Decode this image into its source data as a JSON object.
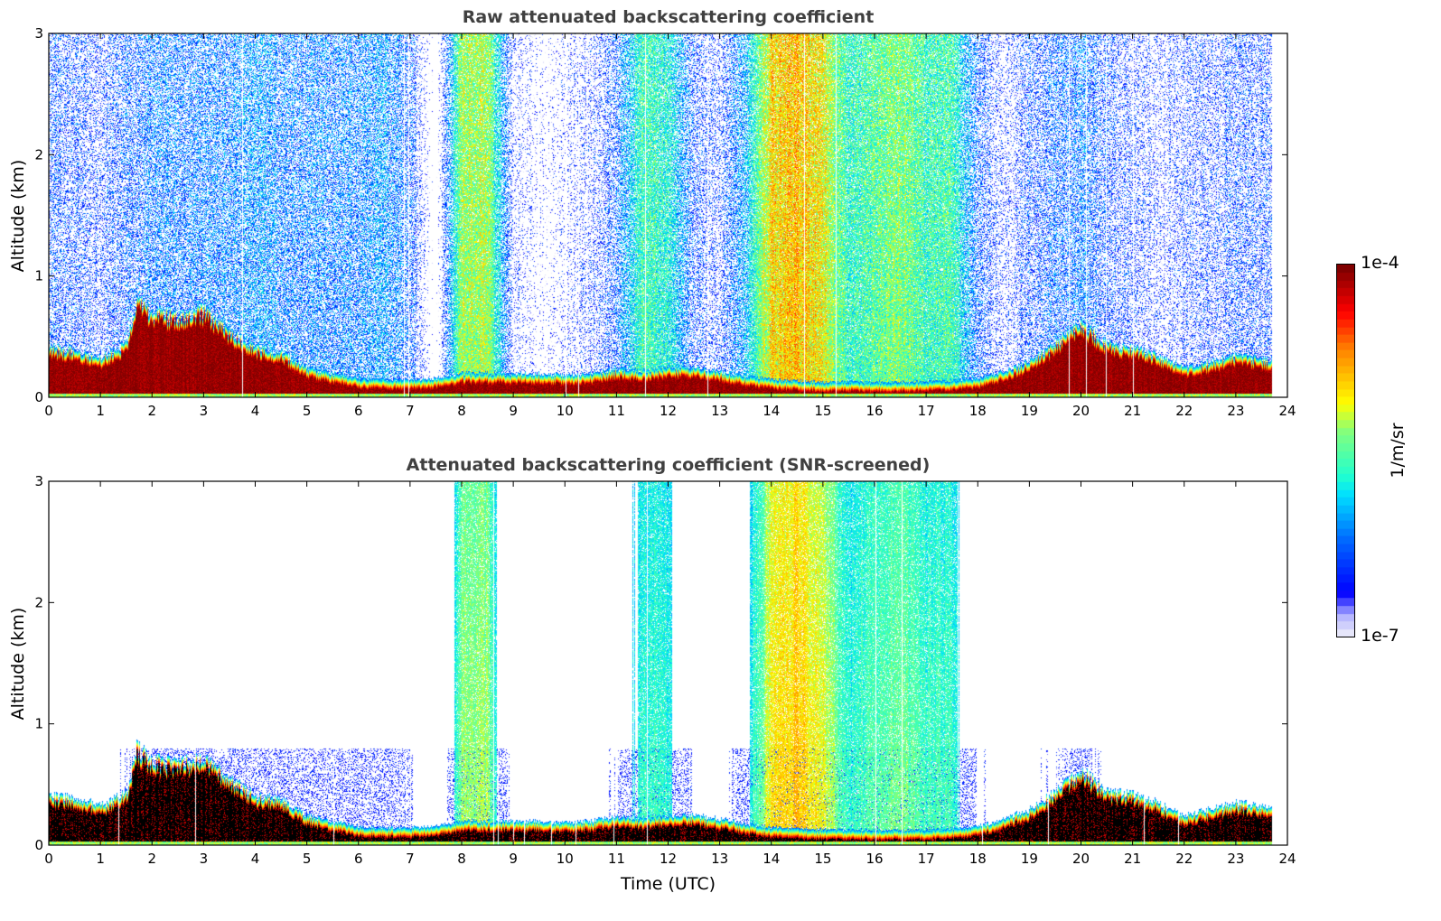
{
  "chart_data": [
    {
      "type": "heatmap",
      "title": "Raw attenuated backscattering coefficient",
      "xlabel": "",
      "ylabel": "Altitude (km)",
      "xlim": [
        0,
        24
      ],
      "ylim": [
        0,
        3
      ],
      "xticks": [
        "0",
        "1",
        "2",
        "3",
        "4",
        "5",
        "6",
        "7",
        "8",
        "9",
        "10",
        "11",
        "12",
        "13",
        "14",
        "15",
        "16",
        "17",
        "18",
        "19",
        "20",
        "21",
        "22",
        "23",
        "24"
      ],
      "yticks": [
        "0",
        "1",
        "2",
        "3"
      ],
      "screened": false
    },
    {
      "type": "heatmap",
      "title": "Attenuated backscattering coefficient (SNR-screened)",
      "xlabel": "Time (UTC)",
      "ylabel": "Altitude (km)",
      "xlim": [
        0,
        24
      ],
      "ylim": [
        0,
        3
      ],
      "xticks": [
        "0",
        "1",
        "2",
        "3",
        "4",
        "5",
        "6",
        "7",
        "8",
        "9",
        "10",
        "11",
        "12",
        "13",
        "14",
        "15",
        "16",
        "17",
        "18",
        "19",
        "20",
        "21",
        "22",
        "23",
        "24"
      ],
      "yticks": [
        "0",
        "1",
        "2",
        "3"
      ],
      "screened": true
    }
  ],
  "profile": {
    "hours": [
      0,
      0.5,
      1,
      1.5,
      1.7,
      2,
      2.5,
      3,
      3.5,
      4,
      4.5,
      5,
      5.5,
      6,
      6.5,
      7,
      7.5,
      8,
      8.5,
      9,
      9.5,
      10,
      10.5,
      11,
      11.5,
      12,
      12.5,
      13,
      13.5,
      14,
      14.5,
      15,
      15.5,
      16,
      16.5,
      17,
      17.5,
      18,
      18.5,
      19,
      19.5,
      20,
      20.5,
      21,
      21.5,
      22,
      22.5,
      23,
      23.5,
      23.7
    ],
    "layer_top_km": [
      0.42,
      0.4,
      0.33,
      0.45,
      0.8,
      0.7,
      0.68,
      0.72,
      0.55,
      0.42,
      0.38,
      0.25,
      0.2,
      0.16,
      0.15,
      0.15,
      0.16,
      0.2,
      0.2,
      0.2,
      0.2,
      0.19,
      0.2,
      0.24,
      0.22,
      0.25,
      0.25,
      0.22,
      0.18,
      0.15,
      0.14,
      0.13,
      0.13,
      0.13,
      0.13,
      0.13,
      0.14,
      0.16,
      0.22,
      0.3,
      0.45,
      0.62,
      0.45,
      0.42,
      0.35,
      0.25,
      0.3,
      0.35,
      0.33,
      0.3
    ],
    "upper_signal_log10": [
      -6.4,
      -6.4,
      -6.5,
      -6.3,
      -6.3,
      -6.2,
      -6.2,
      -6.2,
      -6.2,
      -6.1,
      -6.2,
      -6.2,
      -6.2,
      -6.2,
      -6.1,
      -6.3,
      -7,
      -5.3,
      -5.3,
      -6.6,
      -6.8,
      -6.7,
      -6.6,
      -6.3,
      -5.6,
      -5.7,
      -6.4,
      -6.5,
      -6.0,
      -5.0,
      -4.9,
      -5.1,
      -5.7,
      -5.5,
      -5.4,
      -5.6,
      -5.6,
      -6.3,
      -6.6,
      -6.4,
      -6.3,
      -6.2,
      -6.4,
      -6.5,
      -6.6,
      -6.5,
      -6.5,
      -6.4,
      -6.4,
      -6.4
    ],
    "data_end_hour": 23.7
  },
  "colorbar": {
    "label": "1/m/sr",
    "max_label": "1e-4",
    "min_label": "1e-7",
    "log10_range": [
      -7,
      -4
    ],
    "colormap": "jet"
  },
  "colors": {
    "title": "#404040",
    "saturated_screened": "#000000"
  }
}
